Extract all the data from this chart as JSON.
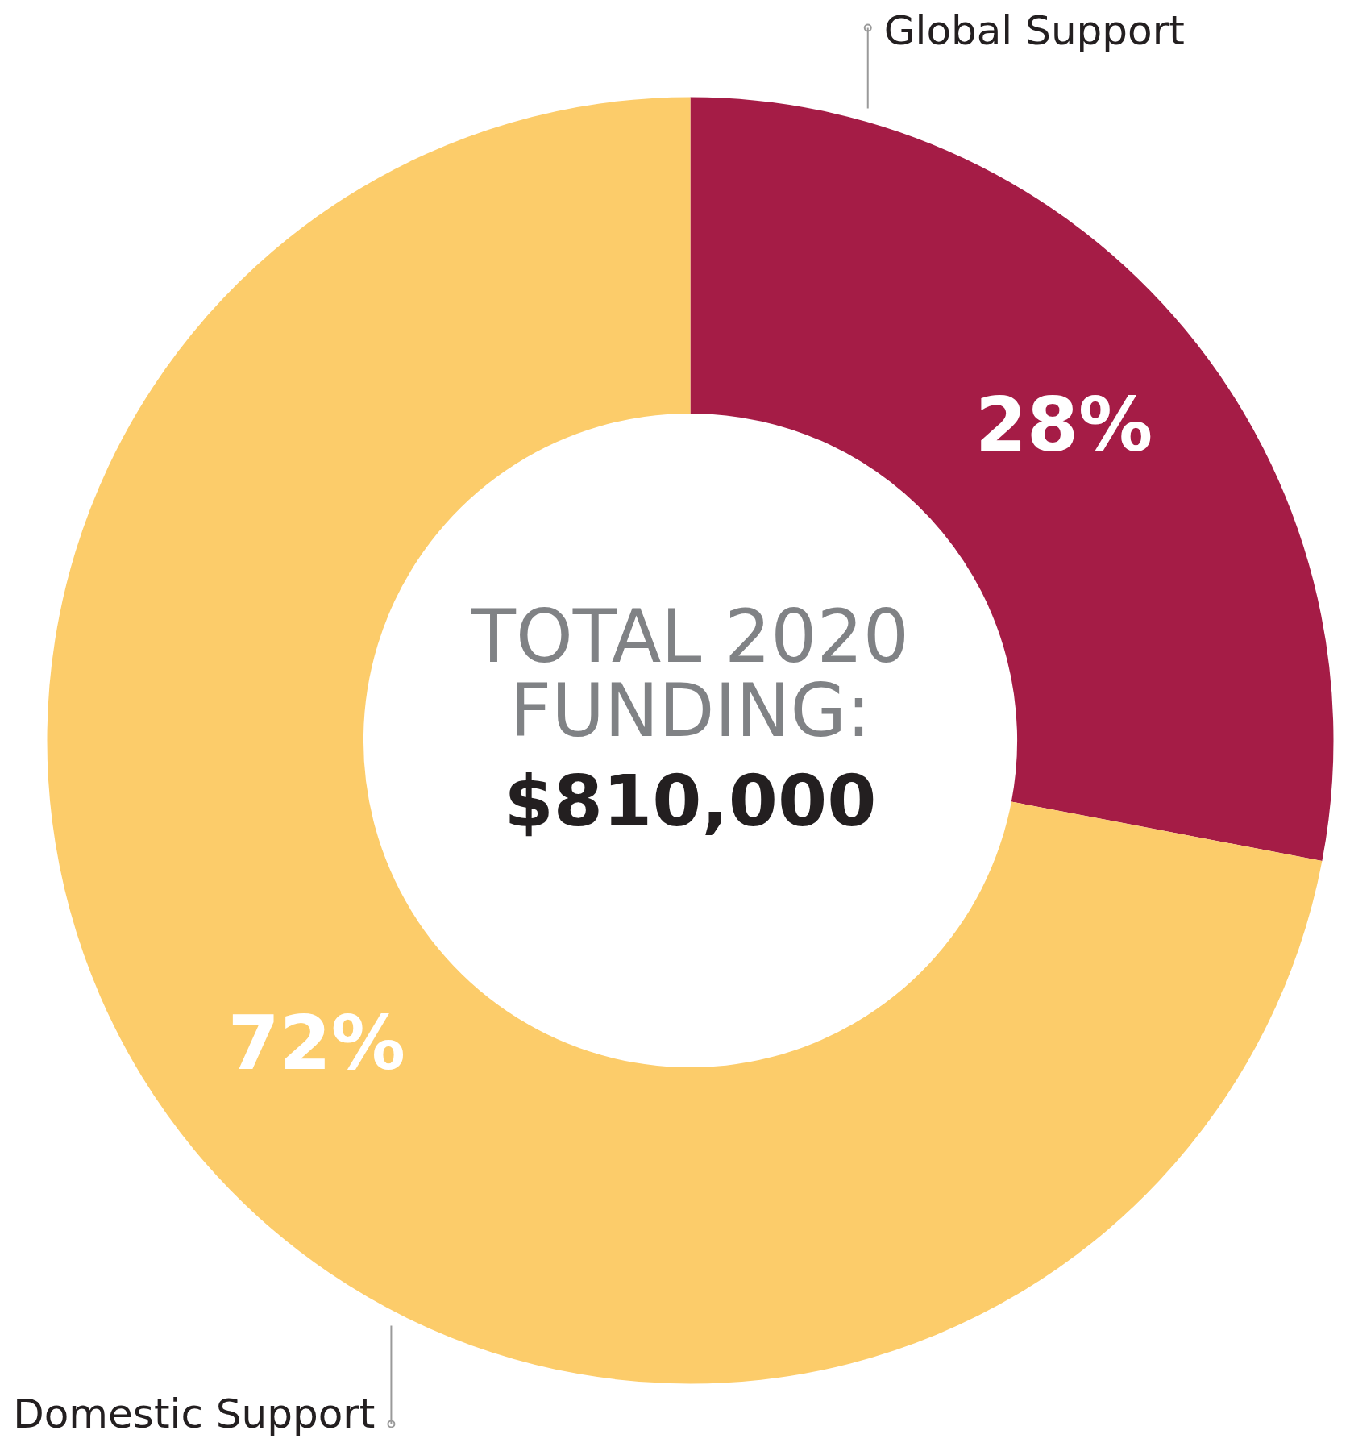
{
  "chart_data": {
    "type": "donut",
    "title": "TOTAL 2020 FUNDING:",
    "subtitle": "$810,000",
    "categories": [
      "Global Support",
      "Domestic Support"
    ],
    "values": [
      28,
      72
    ],
    "colors": [
      "#a51c46",
      "#fccc6a"
    ],
    "value_labels": [
      "28%",
      "72%"
    ]
  }
}
